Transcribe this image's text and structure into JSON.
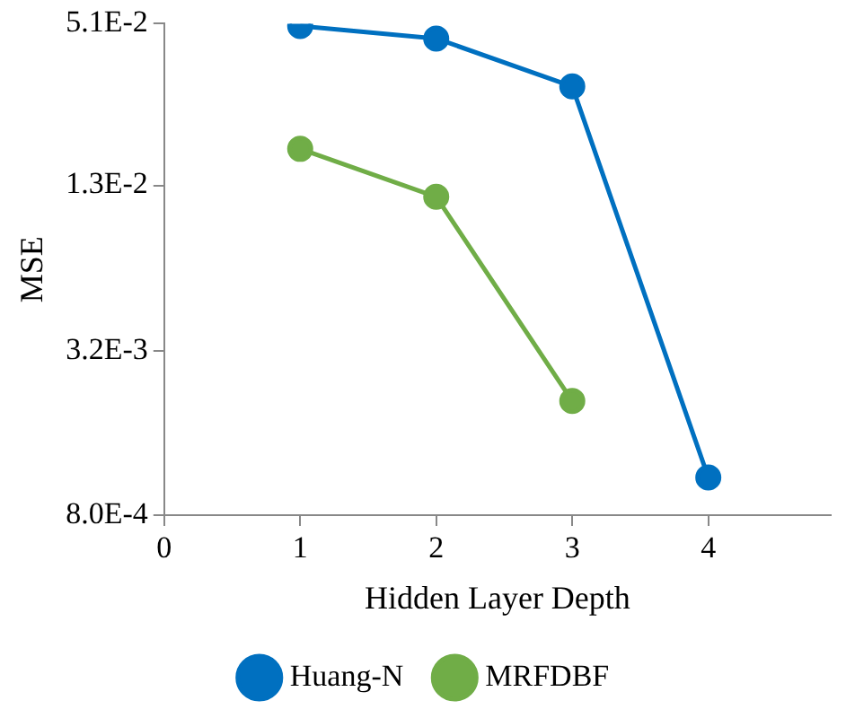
{
  "chart_data": {
    "type": "line",
    "xlabel": "Hidden Layer Depth",
    "ylabel": "MSE",
    "log": "y",
    "grid": false,
    "legend": "bottom",
    "marker": "circle",
    "line_style": "solid",
    "xlim": [
      0,
      4.9
    ],
    "xticks": [
      0,
      1,
      2,
      3,
      4
    ],
    "ylim": [
      0.0008,
      0.051
    ],
    "yticks": [
      {
        "value": 0.0008,
        "label": "8.0E-4"
      },
      {
        "value": 0.0032,
        "label": "3.2E-3"
      },
      {
        "value": 0.013,
        "label": "1.3E-2"
      },
      {
        "value": 0.051,
        "label": "5.1E-2"
      }
    ],
    "series": [
      {
        "name": "Huang-N",
        "color": "#0070c0",
        "x": [
          1,
          2,
          3,
          4
        ],
        "values": [
          0.05,
          0.045,
          0.03,
          0.0011
        ]
      },
      {
        "name": "MRFDBF",
        "color": "#70ad47",
        "x": [
          1,
          2,
          3
        ],
        "values": [
          0.0177,
          0.0118,
          0.0021
        ]
      }
    ]
  }
}
